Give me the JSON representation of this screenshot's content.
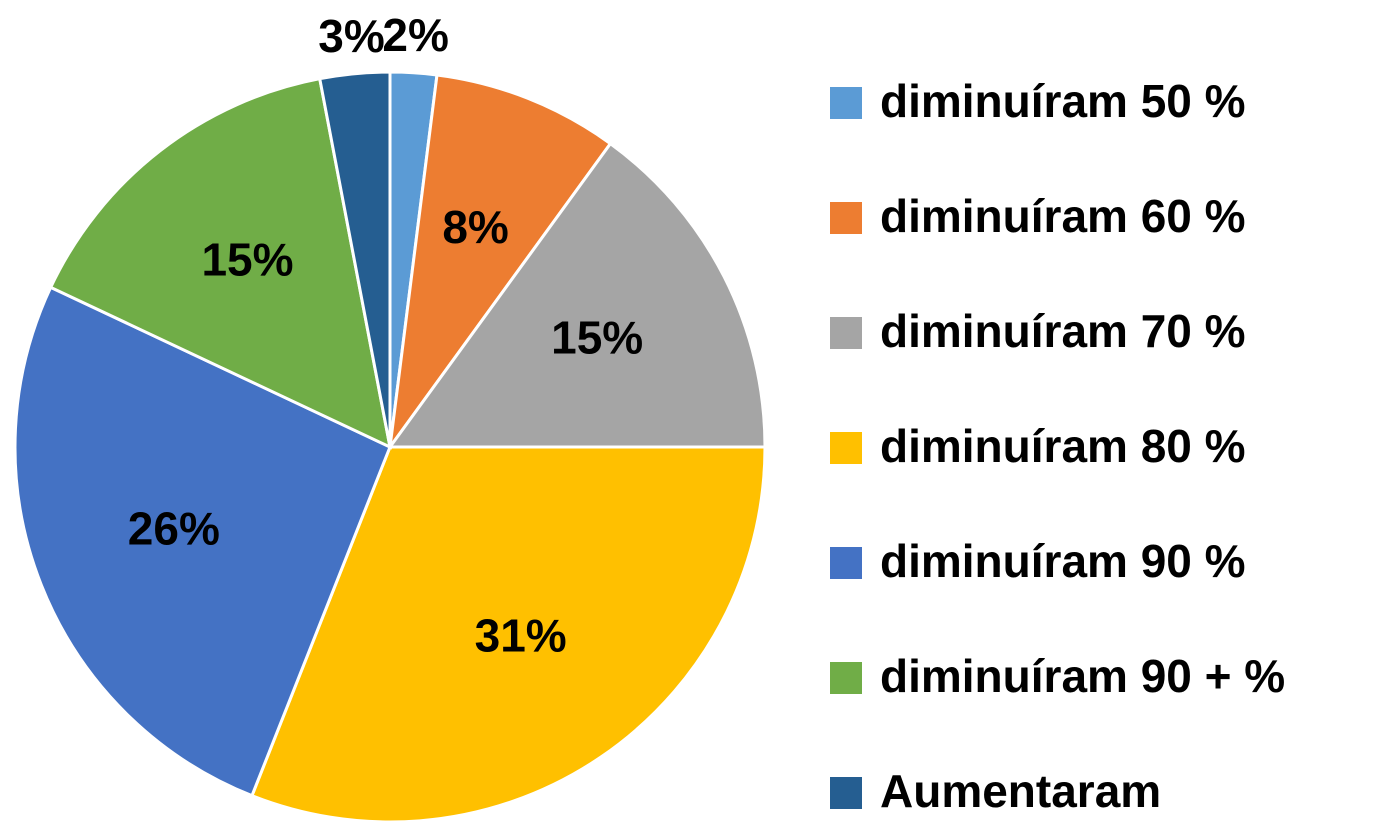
{
  "chart_data": {
    "type": "pie",
    "categories": [
      "diminuíram 50 %",
      "diminuíram 60 %",
      "diminuíram 70 %",
      "diminuíram 80 %",
      "diminuíram 90 %",
      "diminuíram 90 + %",
      "Aumentaram"
    ],
    "values": [
      2,
      8,
      15,
      31,
      26,
      15,
      3
    ],
    "value_labels": [
      "2%",
      "8%",
      "15%",
      "31%",
      "26%",
      "15%",
      "3%"
    ],
    "colors": [
      "#5b9bd5",
      "#ed7d31",
      "#a5a5a5",
      "#ffc000",
      "#4472c4",
      "#70ad47",
      "#255e91"
    ],
    "legend": "right"
  }
}
